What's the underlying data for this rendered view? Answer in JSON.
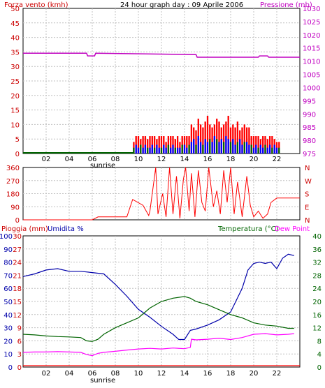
{
  "header": {
    "wind_title": "Forza vento (kmh)",
    "title": "24 hour graph day : 09 Aprile 2006",
    "pressure_title": "Pressione (mb)"
  },
  "bottom_header": {
    "rain_title": "Pioggia (mm)",
    "humidity_title": "Umidita %",
    "temp_title": "Temperatura (°C)",
    "dew_title": "Dew Point"
  },
  "sunrise_label": "sunrise",
  "colors": {
    "background": "#ffffff",
    "grid": "#c0c0c0",
    "wind": "#ff0000",
    "wind_avg": "#006400",
    "wind_gust": "#0000ff",
    "pressure": "#c000c0",
    "direction": "#ff0000",
    "humidity": "#0000aa",
    "temperature": "#006400",
    "dewpoint": "#ff00ff",
    "rain": "#ff0000"
  },
  "chart_data": [
    {
      "type": "bar",
      "name": "wind_pressure",
      "x_ticks": [
        "02",
        "04",
        "06",
        "08",
        "10",
        "12",
        "14",
        "16",
        "18",
        "20",
        "22"
      ],
      "xlim": [
        0,
        24
      ],
      "left_axis": {
        "label": "Forza vento (kmh)",
        "ticks": [
          "0",
          "5",
          "10",
          "15",
          "20",
          "25",
          "30",
          "35",
          "40",
          "45",
          "50"
        ],
        "ylim": [
          0,
          50
        ]
      },
      "right_axis": {
        "label": "Pressione (mb)",
        "ticks": [
          "975",
          "980",
          "985",
          "990",
          "995",
          "1000",
          "1005",
          "1010",
          "1015",
          "1020",
          "1025",
          "1030"
        ],
        "ylim": [
          975,
          1030
        ]
      },
      "pressure": {
        "x": [
          0,
          5.5,
          5.6,
          6.2,
          6.3,
          15,
          15.1,
          20.4,
          20.5,
          21.2,
          21.3,
          24
        ],
        "y": [
          1013,
          1013,
          1012,
          1012,
          1013,
          1012.5,
          1011.5,
          1011.5,
          1012,
          1012,
          1011.5,
          1011.5
        ]
      },
      "wind_avg_baseline": 0,
      "wind_hours": [
        9.6,
        9.8,
        10.0,
        10.2,
        10.4,
        10.6,
        10.8,
        11.0,
        11.2,
        11.4,
        11.6,
        11.8,
        12.0,
        12.2,
        12.4,
        12.6,
        12.8,
        13.0,
        13.2,
        13.4,
        13.6,
        13.8,
        14.0,
        14.2,
        14.4,
        14.6,
        14.8,
        15.0,
        15.2,
        15.4,
        15.6,
        15.8,
        16.0,
        16.2,
        16.4,
        16.6,
        16.8,
        17.0,
        17.2,
        17.4,
        17.6,
        17.8,
        18.0,
        18.2,
        18.4,
        18.6,
        18.8,
        19.0,
        19.2,
        19.4,
        19.6,
        19.8,
        20.0,
        20.2,
        20.4,
        20.6,
        20.8,
        21.0,
        21.2,
        21.4,
        21.6,
        21.8,
        22.0,
        22.2
      ],
      "wind_gust": [
        4,
        6,
        6,
        5,
        6,
        6,
        5,
        6,
        6,
        6,
        5,
        6,
        6,
        6,
        4,
        6,
        6,
        6,
        5,
        6,
        4,
        6,
        6,
        6,
        6,
        10,
        9,
        8,
        12,
        10,
        9,
        11,
        13,
        10,
        9,
        10,
        12,
        11,
        9,
        10,
        11,
        13,
        9,
        10,
        9,
        11,
        8,
        9,
        10,
        9,
        9,
        6,
        6,
        6,
        6,
        5,
        6,
        6,
        5,
        6,
        6,
        5,
        4,
        4
      ],
      "wind_mean": [
        2,
        3,
        2,
        3,
        2,
        3,
        2,
        2,
        3,
        2,
        3,
        2,
        2,
        3,
        2,
        3,
        2,
        3,
        2,
        2,
        2,
        3,
        3,
        2,
        3,
        4,
        5,
        3,
        6,
        4,
        3,
        5,
        4,
        5,
        4,
        6,
        5,
        4,
        5,
        4,
        6,
        5,
        4,
        5,
        3,
        4,
        5,
        3,
        4,
        4,
        3,
        3,
        2,
        3,
        2,
        3,
        2,
        3,
        2,
        3,
        2,
        3,
        2,
        2
      ]
    },
    {
      "type": "line",
      "name": "wind_direction",
      "x_ticks": [],
      "xlim": [
        0,
        24
      ],
      "left_axis": {
        "ticks": [
          "0",
          "90",
          "180",
          "270",
          "360"
        ],
        "ylim": [
          0,
          360
        ]
      },
      "right_axis": {
        "ticks": [
          "N",
          "E",
          "S",
          "W",
          "N"
        ]
      },
      "x": [
        0,
        6.0,
        6.5,
        9.0,
        9.5,
        10.4,
        10.9,
        11.0,
        11.5,
        11.7,
        12.1,
        12.4,
        12.7,
        13.0,
        13.3,
        13.6,
        13.9,
        14.1,
        14.4,
        14.6,
        14.9,
        15.2,
        15.5,
        15.8,
        16.1,
        16.5,
        16.8,
        17.1,
        17.4,
        17.7,
        18.0,
        18.3,
        18.6,
        19.0,
        19.4,
        19.7,
        20.0,
        20.4,
        20.8,
        21.2,
        21.5,
        22.0,
        22.5,
        23.0,
        24
      ],
      "y": [
        0,
        0,
        20,
        20,
        140,
        100,
        30,
        60,
        360,
        40,
        180,
        20,
        360,
        40,
        300,
        10,
        280,
        360,
        60,
        320,
        20,
        340,
        120,
        60,
        360,
        90,
        200,
        40,
        340,
        120,
        360,
        40,
        260,
        20,
        300,
        100,
        20,
        60,
        10,
        40,
        120,
        150,
        150,
        150,
        150
      ]
    },
    {
      "type": "line",
      "name": "rain_humidity_temperature",
      "x_ticks": [
        "02",
        "04",
        "06",
        "08",
        "10",
        "12",
        "14",
        "16",
        "18",
        "20",
        "22"
      ],
      "xlim": [
        0,
        24
      ],
      "left_axis_humidity": {
        "label": "Umidita %",
        "ticks": [
          "0",
          "10",
          "20",
          "30",
          "40",
          "50",
          "60",
          "70",
          "80",
          "90",
          "100"
        ],
        "ylim": [
          0,
          100
        ]
      },
      "left_axis_rain": {
        "label": "Pioggia (mm)",
        "ticks": [
          "0",
          "3",
          "6",
          "9",
          "12",
          "15",
          "18",
          "21",
          "24",
          "27",
          "30"
        ],
        "ylim": [
          0,
          30
        ]
      },
      "right_axis": {
        "label": "Temperatura (°C)",
        "ticks": [
          "0",
          "4",
          "8",
          "12",
          "16",
          "20",
          "24",
          "28",
          "32",
          "36",
          "40"
        ],
        "ylim": [
          0,
          40
        ]
      },
      "series": [
        {
          "name": "Umidita %",
          "x": [
            0,
            1,
            2,
            3,
            4,
            5,
            6,
            7,
            8,
            9,
            10,
            11,
            12,
            13,
            13.5,
            14,
            14.5,
            15,
            16,
            17,
            18,
            19,
            19.5,
            20,
            20.5,
            21,
            21.5,
            22,
            22.5,
            23,
            23.5
          ],
          "y": [
            69,
            71,
            74,
            75,
            73,
            73,
            72,
            71,
            63,
            54,
            44,
            38,
            31,
            25,
            21,
            21,
            28,
            29,
            32,
            36,
            42,
            60,
            74,
            79,
            80,
            79,
            80,
            75,
            83,
            86,
            85
          ]
        },
        {
          "name": "Temperatura (°C)",
          "x": [
            0,
            1,
            2,
            3,
            4,
            5,
            5.5,
            6,
            6.5,
            7,
            8,
            9,
            10,
            11,
            12,
            13,
            14,
            14.5,
            15,
            16,
            17,
            18,
            19,
            20,
            21,
            22,
            23,
            23.5
          ],
          "y": [
            10.0,
            9.8,
            9.5,
            9.3,
            9.2,
            9.0,
            8.0,
            7.8,
            8.5,
            10.0,
            12.0,
            13.5,
            15.0,
            18.0,
            20.0,
            21.0,
            21.5,
            21.0,
            20.0,
            19.0,
            17.5,
            16.0,
            15.0,
            13.5,
            12.8,
            12.5,
            11.8,
            11.8
          ]
        },
        {
          "name": "Dew Point",
          "x": [
            0,
            1,
            2,
            3,
            4,
            5,
            5.5,
            6,
            6.5,
            7,
            8,
            9,
            10,
            11,
            12,
            13,
            14,
            14.5,
            14.6,
            15,
            16,
            17,
            18,
            19,
            20,
            21,
            22,
            23,
            23.5
          ],
          "y": [
            4.5,
            4.6,
            4.6,
            4.7,
            4.6,
            4.5,
            3.8,
            3.5,
            4.2,
            4.5,
            4.8,
            5.2,
            5.5,
            5.7,
            5.5,
            5.8,
            5.6,
            6.0,
            8.5,
            8.3,
            8.5,
            8.8,
            8.4,
            9.0,
            10.0,
            10.2,
            9.8,
            10.0,
            10.2
          ]
        },
        {
          "name": "Pioggia (mm)",
          "x": [
            0,
            24
          ],
          "y": [
            0,
            0
          ]
        }
      ]
    }
  ]
}
